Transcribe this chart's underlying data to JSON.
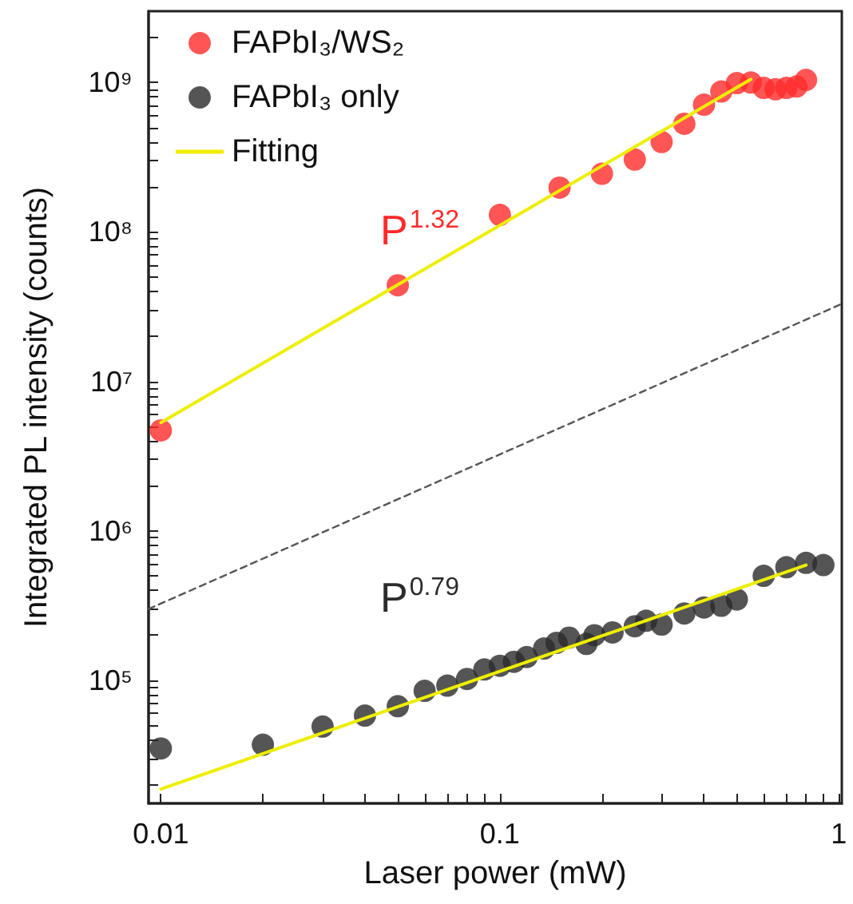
{
  "chart_data": {
    "type": "scatter",
    "xlabel": "Laser power (mW)",
    "ylabel": "Integrated PL intensity (counts)",
    "log": "xy",
    "marker": "circle",
    "grid": false,
    "legend": "top left",
    "xlim": [
      0.0092,
      1.02
    ],
    "ylim": [
      15000,
      3000000000
    ],
    "xticks": [
      0.01,
      {
        "value": 0.02,
        "label": null
      },
      {
        "value": 0.03,
        "label": null
      },
      {
        "value": 0.04,
        "label": null
      },
      {
        "value": 0.05,
        "label": null
      },
      {
        "value": 0.06,
        "label": null
      },
      {
        "value": 0.07,
        "label": null
      },
      {
        "value": 0.08,
        "label": null
      },
      {
        "value": 0.09,
        "label": null
      },
      0.1,
      {
        "value": 0.2,
        "label": null
      },
      {
        "value": 0.3,
        "label": null
      },
      {
        "value": 0.4,
        "label": null
      },
      {
        "value": 0.5,
        "label": null
      },
      {
        "value": 0.6,
        "label": null
      },
      {
        "value": 0.7,
        "label": null
      },
      {
        "value": 0.8,
        "label": null
      },
      {
        "value": 0.9,
        "label": null
      },
      1
    ],
    "yticks": [
      {
        "value": 20000,
        "label": null
      },
      {
        "value": 30000,
        "label": null
      },
      {
        "value": 40000,
        "label": null
      },
      {
        "value": 50000,
        "label": null
      },
      {
        "value": 60000,
        "label": null
      },
      {
        "value": 70000,
        "label": null
      },
      {
        "value": 80000,
        "label": null
      },
      {
        "value": 90000,
        "label": null
      },
      {
        "value": 100000,
        "label": "10⁵"
      },
      {
        "value": 200000,
        "label": null
      },
      {
        "value": 300000,
        "label": null
      },
      {
        "value": 400000,
        "label": null
      },
      {
        "value": 500000,
        "label": null
      },
      {
        "value": 600000,
        "label": null
      },
      {
        "value": 700000,
        "label": null
      },
      {
        "value": 800000,
        "label": null
      },
      {
        "value": 900000,
        "label": null
      },
      {
        "value": 1000000,
        "label": "10⁶"
      },
      {
        "value": 2000000,
        "label": null
      },
      {
        "value": 3000000,
        "label": null
      },
      {
        "value": 4000000,
        "label": null
      },
      {
        "value": 5000000,
        "label": null
      },
      {
        "value": 6000000,
        "label": null
      },
      {
        "value": 7000000,
        "label": null
      },
      {
        "value": 8000000,
        "label": null
      },
      {
        "value": 9000000,
        "label": null
      },
      {
        "value": 10000000,
        "label": "10⁷"
      },
      {
        "value": 20000000,
        "label": null
      },
      {
        "value": 30000000,
        "label": null
      },
      {
        "value": 40000000,
        "label": null
      },
      {
        "value": 50000000,
        "label": null
      },
      {
        "value": 60000000,
        "label": null
      },
      {
        "value": 70000000,
        "label": null
      },
      {
        "value": 80000000,
        "label": null
      },
      {
        "value": 90000000,
        "label": null
      },
      {
        "value": 100000000,
        "label": "10⁸"
      },
      {
        "value": 200000000,
        "label": null
      },
      {
        "value": 300000000,
        "label": null
      },
      {
        "value": 400000000,
        "label": null
      },
      {
        "value": 500000000,
        "label": null
      },
      {
        "value": 600000000,
        "label": null
      },
      {
        "value": 700000000,
        "label": null
      },
      {
        "value": 800000000,
        "label": null
      },
      {
        "value": 900000000,
        "label": null
      },
      {
        "value": 1000000000,
        "label": "10⁹"
      },
      {
        "value": 2000000000,
        "label": null
      }
    ],
    "series": [
      {
        "name": "FAPbI₃/WS₂",
        "color": "#ff2b2b",
        "x": [
          0.01,
          0.05,
          0.1,
          0.15,
          0.2,
          0.25,
          0.3,
          0.35,
          0.4,
          0.45,
          0.5,
          0.55,
          0.6,
          0.65,
          0.7,
          0.75,
          0.8
        ],
        "values": [
          4700000,
          44000000,
          130000000,
          198000000,
          245000000,
          305000000,
          400000000,
          530000000,
          710000000,
          870000000,
          990000000,
          1000000000,
          920000000,
          900000000,
          920000000,
          940000000,
          1040000000
        ]
      },
      {
        "name": "FAPbI₃ only",
        "color": "#2b2b2b",
        "x": [
          0.01,
          0.02,
          0.03,
          0.04,
          0.05,
          0.06,
          0.07,
          0.08,
          0.09,
          0.1,
          0.11,
          0.12,
          0.135,
          0.147,
          0.16,
          0.18,
          0.19,
          0.215,
          0.25,
          0.27,
          0.3,
          0.35,
          0.4,
          0.45,
          0.5,
          0.6,
          0.7,
          0.8,
          0.9
        ],
        "values": [
          35000,
          37000,
          49000,
          58000,
          67000,
          85000,
          92000,
          102000,
          118000,
          125000,
          133000,
          143000,
          163000,
          178000,
          193000,
          175000,
          200000,
          209000,
          230000,
          250000,
          236000,
          280000,
          307000,
          315000,
          347000,
          500000,
          570000,
          610000,
          590000
        ]
      },
      {
        "name": "Fitting",
        "type": "line",
        "marker": "none",
        "color": "#eeee00",
        "x": [
          0.01,
          0.55
        ],
        "values": [
          5300000,
          1050000000
        ]
      },
      {
        "type": "line",
        "marker": "none",
        "color": "#eeee00",
        "x": [
          0.01,
          0.8
        ],
        "values": [
          18700,
          590000
        ]
      },
      {
        "type": "line",
        "marker": "none",
        "line_style": "dashed",
        "color": "#555555",
        "x": [
          0.0092,
          1.02
        ],
        "values": [
          300000,
          33000000
        ]
      }
    ],
    "annotations": [
      "P$^{1.32}$",
      "P$^{0.79}$"
    ]
  }
}
